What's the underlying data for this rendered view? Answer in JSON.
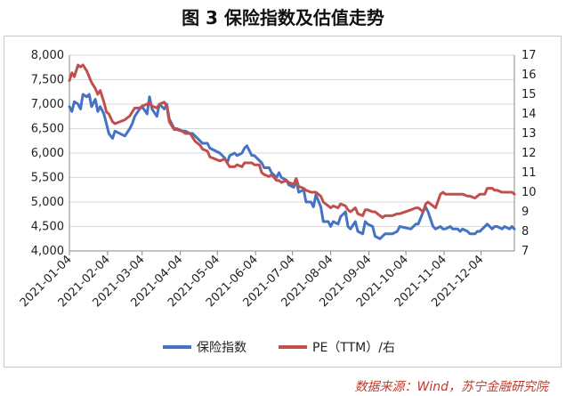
{
  "title": "图 3 保险指数及估值走势",
  "source": "数据来源：Wind，苏宁金融研究院",
  "colors": {
    "index": "#4472c4",
    "pe": "#c0504d",
    "grid": "#d9d9d9",
    "axis": "#888888"
  },
  "chart_data": {
    "type": "line",
    "title": "图 3 保险指数及估值走势",
    "x_ticks": [
      "2021-01-04",
      "2021-02-04",
      "2021-03-04",
      "2021-04-04",
      "2021-05-04",
      "2021-06-04",
      "2021-07-04",
      "2021-08-04",
      "2021-09-04",
      "2021-10-04",
      "2021-11-04",
      "2021-12-04"
    ],
    "y_left": {
      "min": 4000,
      "max": 8000,
      "step": 500,
      "ticks": [
        "4,000",
        "4,500",
        "5,000",
        "5,500",
        "6,000",
        "6,500",
        "7,000",
        "7,500",
        "8,000"
      ]
    },
    "y_right": {
      "min": 7,
      "max": 17,
      "step": 1,
      "ticks": [
        "7",
        "8",
        "9",
        "10",
        "11",
        "12",
        "13",
        "14",
        "15",
        "16",
        "17"
      ]
    },
    "grid": true,
    "legend_position": "bottom",
    "series": [
      {
        "name": "保险指数",
        "axis": "left",
        "color": "#4472c4",
        "x": [
          "2021-01-04",
          "2021-01-06",
          "2021-01-08",
          "2021-01-11",
          "2021-01-13",
          "2021-01-15",
          "2021-01-18",
          "2021-01-20",
          "2021-01-22",
          "2021-01-25",
          "2021-01-27",
          "2021-01-29",
          "2021-02-01",
          "2021-02-03",
          "2021-02-05",
          "2021-02-08",
          "2021-02-10",
          "2021-02-18",
          "2021-02-22",
          "2021-02-24",
          "2021-02-26",
          "2021-03-02",
          "2021-03-04",
          "2021-03-08",
          "2021-03-10",
          "2021-03-12",
          "2021-03-16",
          "2021-03-18",
          "2021-03-22",
          "2021-03-24",
          "2021-03-26",
          "2021-03-30",
          "2021-04-01",
          "2021-04-06",
          "2021-04-08",
          "2021-04-12",
          "2021-04-14",
          "2021-04-16",
          "2021-04-20",
          "2021-04-22",
          "2021-04-26",
          "2021-04-28",
          "2021-05-06",
          "2021-05-10",
          "2021-05-12",
          "2021-05-14",
          "2021-05-18",
          "2021-05-20",
          "2021-05-24",
          "2021-05-26",
          "2021-05-28",
          "2021-06-01",
          "2021-06-03",
          "2021-06-07",
          "2021-06-09",
          "2021-06-11",
          "2021-06-15",
          "2021-06-17",
          "2021-06-21",
          "2021-06-23",
          "2021-06-25",
          "2021-06-29",
          "2021-07-01",
          "2021-07-05",
          "2021-07-07",
          "2021-07-09",
          "2021-07-13",
          "2021-07-15",
          "2021-07-19",
          "2021-07-21",
          "2021-07-23",
          "2021-07-27",
          "2021-07-29",
          "2021-08-02",
          "2021-08-04",
          "2021-08-06",
          "2021-08-10",
          "2021-08-12",
          "2021-08-16",
          "2021-08-18",
          "2021-08-20",
          "2021-08-24",
          "2021-08-26",
          "2021-08-30",
          "2021-09-01",
          "2021-09-03",
          "2021-09-07",
          "2021-09-09",
          "2021-09-13",
          "2021-09-15",
          "2021-09-17",
          "2021-09-23",
          "2021-09-27",
          "2021-09-29",
          "2021-10-08",
          "2021-10-12",
          "2021-10-14",
          "2021-10-18",
          "2021-10-20",
          "2021-10-22",
          "2021-10-26",
          "2021-10-28",
          "2021-11-01",
          "2021-11-03",
          "2021-11-05",
          "2021-11-09",
          "2021-11-11",
          "2021-11-15",
          "2021-11-17",
          "2021-11-19",
          "2021-11-23",
          "2021-11-25",
          "2021-11-29",
          "2021-12-01",
          "2021-12-03",
          "2021-12-07",
          "2021-12-09",
          "2021-12-13",
          "2021-12-15",
          "2021-12-17",
          "2021-12-21",
          "2021-12-23",
          "2021-12-27",
          "2021-12-29",
          "2021-12-31"
        ],
        "y": [
          6950,
          6850,
          7050,
          7000,
          6900,
          7200,
          7150,
          7200,
          6950,
          7100,
          6850,
          6950,
          6800,
          6600,
          6400,
          6300,
          6450,
          6350,
          6500,
          6600,
          6750,
          6900,
          6950,
          6800,
          7150,
          6900,
          6750,
          7000,
          6900,
          7000,
          6700,
          6500,
          6500,
          6450,
          6450,
          6400,
          6400,
          6350,
          6250,
          6200,
          6200,
          6100,
          6000,
          5900,
          5800,
          5950,
          6000,
          5950,
          6000,
          6100,
          6150,
          5950,
          5950,
          5850,
          5800,
          5700,
          5700,
          5600,
          5500,
          5600,
          5500,
          5450,
          5350,
          5300,
          5450,
          5200,
          5250,
          5000,
          5000,
          4900,
          5150,
          4900,
          4600,
          4600,
          4500,
          4600,
          4550,
          4700,
          4800,
          4500,
          4450,
          4600,
          4400,
          4350,
          4600,
          4550,
          4500,
          4300,
          4250,
          4300,
          4350,
          4350,
          4400,
          4500,
          4450,
          4550,
          4550,
          4800,
          4900,
          4800,
          4500,
          4450,
          4500,
          4450,
          4450,
          4500,
          4450,
          4450,
          4400,
          4450,
          4400,
          4350,
          4350,
          4400,
          4400,
          4500,
          4550,
          4450,
          4500,
          4500,
          4450,
          4500,
          4450,
          4500,
          4450
        ]
      },
      {
        "name": "PE（TTM）/右",
        "axis": "right",
        "color": "#c0504d",
        "x": [
          "2021-01-04",
          "2021-01-06",
          "2021-01-08",
          "2021-01-11",
          "2021-01-13",
          "2021-01-15",
          "2021-01-18",
          "2021-01-20",
          "2021-01-22",
          "2021-01-25",
          "2021-01-27",
          "2021-01-29",
          "2021-02-01",
          "2021-02-03",
          "2021-02-05",
          "2021-02-08",
          "2021-02-10",
          "2021-02-18",
          "2021-02-22",
          "2021-02-24",
          "2021-02-26",
          "2021-03-02",
          "2021-03-04",
          "2021-03-08",
          "2021-03-10",
          "2021-03-12",
          "2021-03-16",
          "2021-03-18",
          "2021-03-22",
          "2021-03-24",
          "2021-03-26",
          "2021-03-30",
          "2021-04-01",
          "2021-04-06",
          "2021-04-08",
          "2021-04-12",
          "2021-04-14",
          "2021-04-16",
          "2021-04-20",
          "2021-04-22",
          "2021-04-26",
          "2021-04-28",
          "2021-05-06",
          "2021-05-10",
          "2021-05-12",
          "2021-05-14",
          "2021-05-18",
          "2021-05-20",
          "2021-05-24",
          "2021-05-26",
          "2021-05-28",
          "2021-06-01",
          "2021-06-03",
          "2021-06-07",
          "2021-06-09",
          "2021-06-11",
          "2021-06-15",
          "2021-06-17",
          "2021-06-21",
          "2021-06-23",
          "2021-06-25",
          "2021-06-29",
          "2021-07-01",
          "2021-07-05",
          "2021-07-07",
          "2021-07-09",
          "2021-07-13",
          "2021-07-15",
          "2021-07-19",
          "2021-07-21",
          "2021-07-23",
          "2021-07-27",
          "2021-07-29",
          "2021-08-02",
          "2021-08-04",
          "2021-08-06",
          "2021-08-10",
          "2021-08-12",
          "2021-08-16",
          "2021-08-18",
          "2021-08-20",
          "2021-08-24",
          "2021-08-26",
          "2021-08-30",
          "2021-09-01",
          "2021-09-03",
          "2021-09-07",
          "2021-09-09",
          "2021-09-13",
          "2021-09-15",
          "2021-09-17",
          "2021-09-23",
          "2021-09-27",
          "2021-09-29",
          "2021-10-08",
          "2021-10-12",
          "2021-10-14",
          "2021-10-18",
          "2021-10-20",
          "2021-10-22",
          "2021-10-26",
          "2021-10-28",
          "2021-11-01",
          "2021-11-03",
          "2021-11-05",
          "2021-11-09",
          "2021-11-11",
          "2021-11-15",
          "2021-11-17",
          "2021-11-19",
          "2021-11-23",
          "2021-11-25",
          "2021-11-29",
          "2021-12-01",
          "2021-12-03",
          "2021-12-07",
          "2021-12-09",
          "2021-12-13",
          "2021-12-15",
          "2021-12-17",
          "2021-12-21",
          "2021-12-23",
          "2021-12-27",
          "2021-12-29",
          "2021-12-31"
        ],
        "y": [
          15.7,
          16.1,
          15.9,
          16.5,
          16.4,
          16.5,
          16.2,
          15.9,
          15.6,
          15.3,
          15.0,
          15.2,
          14.6,
          14.1,
          14.0,
          13.6,
          13.5,
          13.7,
          13.9,
          14.1,
          14.3,
          14.3,
          14.4,
          14.5,
          14.6,
          14.4,
          14.3,
          14.5,
          14.6,
          14.4,
          13.6,
          13.2,
          13.2,
          13.1,
          13.0,
          13.0,
          12.8,
          12.6,
          12.4,
          12.2,
          12.1,
          11.8,
          11.6,
          11.7,
          11.5,
          11.3,
          11.3,
          11.4,
          11.3,
          11.5,
          11.5,
          11.5,
          11.4,
          11.4,
          11.0,
          10.9,
          10.8,
          10.9,
          10.6,
          10.6,
          10.5,
          10.6,
          10.5,
          10.4,
          10.7,
          10.3,
          10.2,
          10.1,
          10.0,
          10.0,
          10.0,
          9.8,
          9.5,
          9.3,
          9.2,
          9.3,
          9.2,
          9.4,
          9.3,
          9.1,
          9.0,
          9.2,
          8.9,
          8.8,
          9.1,
          9.1,
          9.0,
          9.0,
          8.8,
          8.7,
          8.8,
          8.8,
          8.9,
          8.9,
          9.1,
          9.2,
          9.2,
          9.0,
          9.4,
          9.5,
          9.3,
          9.2,
          9.9,
          10.0,
          9.9,
          9.9,
          9.9,
          9.9,
          9.9,
          9.9,
          9.8,
          9.8,
          9.7,
          9.8,
          9.9,
          9.9,
          10.2,
          10.2,
          10.1,
          10.1,
          10.0,
          10.0,
          10.0,
          10.0,
          9.9
        ]
      }
    ]
  }
}
